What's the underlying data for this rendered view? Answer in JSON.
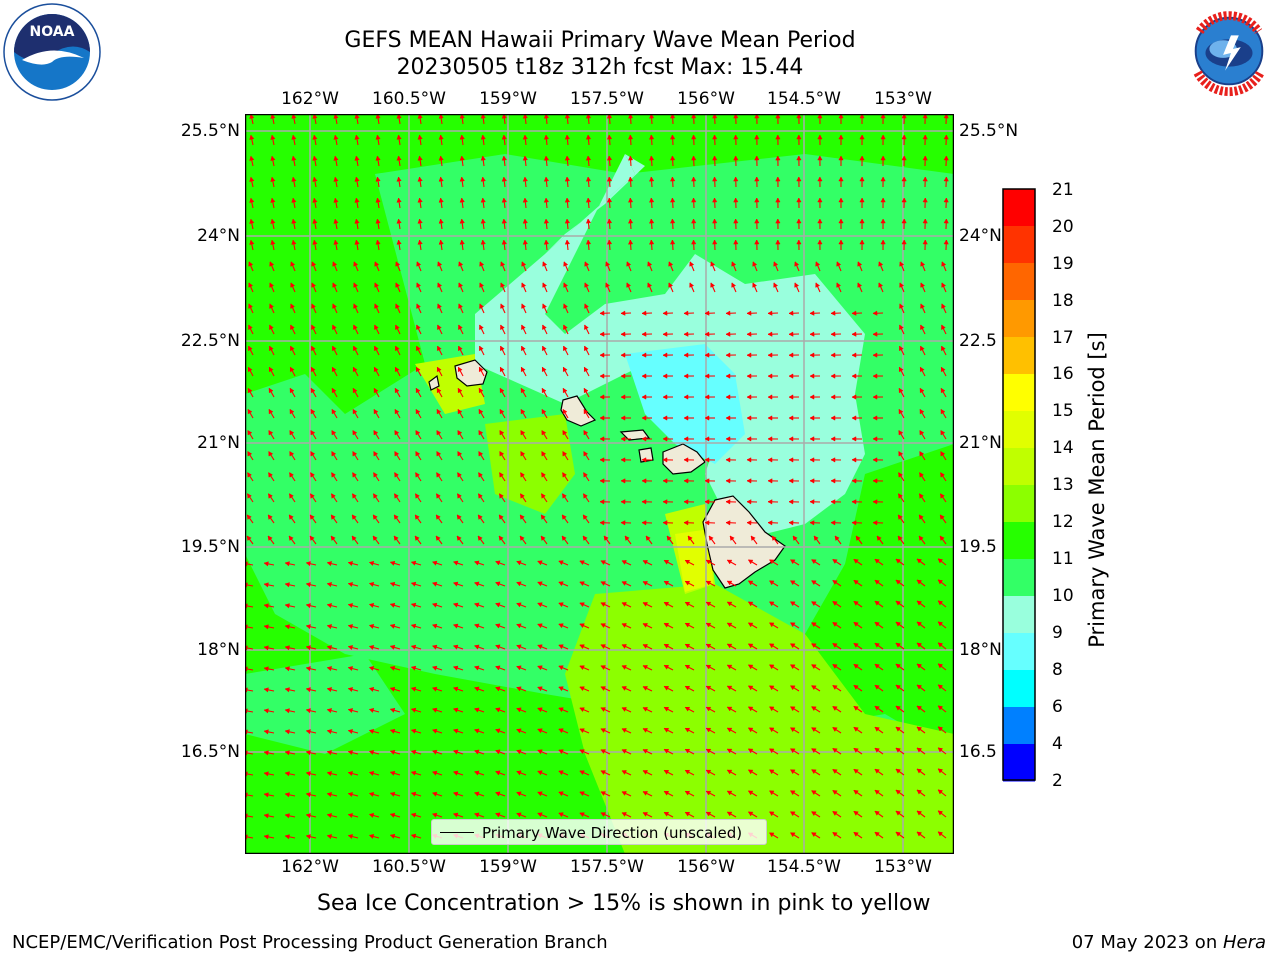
{
  "header": {
    "title_line1": "GEFS MEAN Hawaii Primary Wave Mean Period",
    "title_line2": "20230505 t18z 312h fcst   Max: 15.44"
  },
  "logos": {
    "left": {
      "name": "NOAA",
      "ring_text": "NATIONAL OCEANIC AND ATMOSPHERIC ADMINISTRATION",
      "bottom_text": "U.S. DEPARTMENT OF COMMERCE"
    },
    "right": {
      "name": "NATIONAL WEATHER SERVICE"
    }
  },
  "map": {
    "lon_ticks": [
      "162°W",
      "160.5°W",
      "159°W",
      "157.5°W",
      "156°W",
      "154.5°W",
      "153°W"
    ],
    "lat_ticks": [
      "25.5°N",
      "24°N",
      "22.5°N",
      "21°N",
      "19.5°N",
      "18°N",
      "16.5°N"
    ],
    "right_lat_ticks": [
      "25.5°N",
      "24°N",
      "22.5",
      "21°N",
      "19.5",
      "18°N",
      "16.5"
    ],
    "legend_label": "Primary Wave Direction (unscaled)",
    "arrow_color": "#ff0000",
    "land_color": "#efebd8"
  },
  "colorbar": {
    "label": "Primary Wave Mean Period [s]",
    "ticks": [
      "21",
      "20",
      "19",
      "18",
      "17",
      "16",
      "15",
      "14",
      "13",
      "12",
      "11",
      "10",
      "9",
      "8",
      "6",
      "4",
      "2"
    ],
    "colors": [
      "#ff0000",
      "#ff3300",
      "#ff6600",
      "#ff9900",
      "#ffc000",
      "#ffff00",
      "#e1ff00",
      "#c0ff00",
      "#8cff00",
      "#26ff00",
      "#33ff66",
      "#99ffdd",
      "#66ffff",
      "#00ffff",
      "#0080ff",
      "#0000ff"
    ]
  },
  "notes": {
    "sea_ice": "Sea Ice Concentration > 15% is shown in pink to yellow"
  },
  "footer": {
    "left": "NCEP/EMC/Verification Post Processing Product Generation Branch",
    "date": "07 May 2023 on ",
    "machine": "Hera"
  }
}
